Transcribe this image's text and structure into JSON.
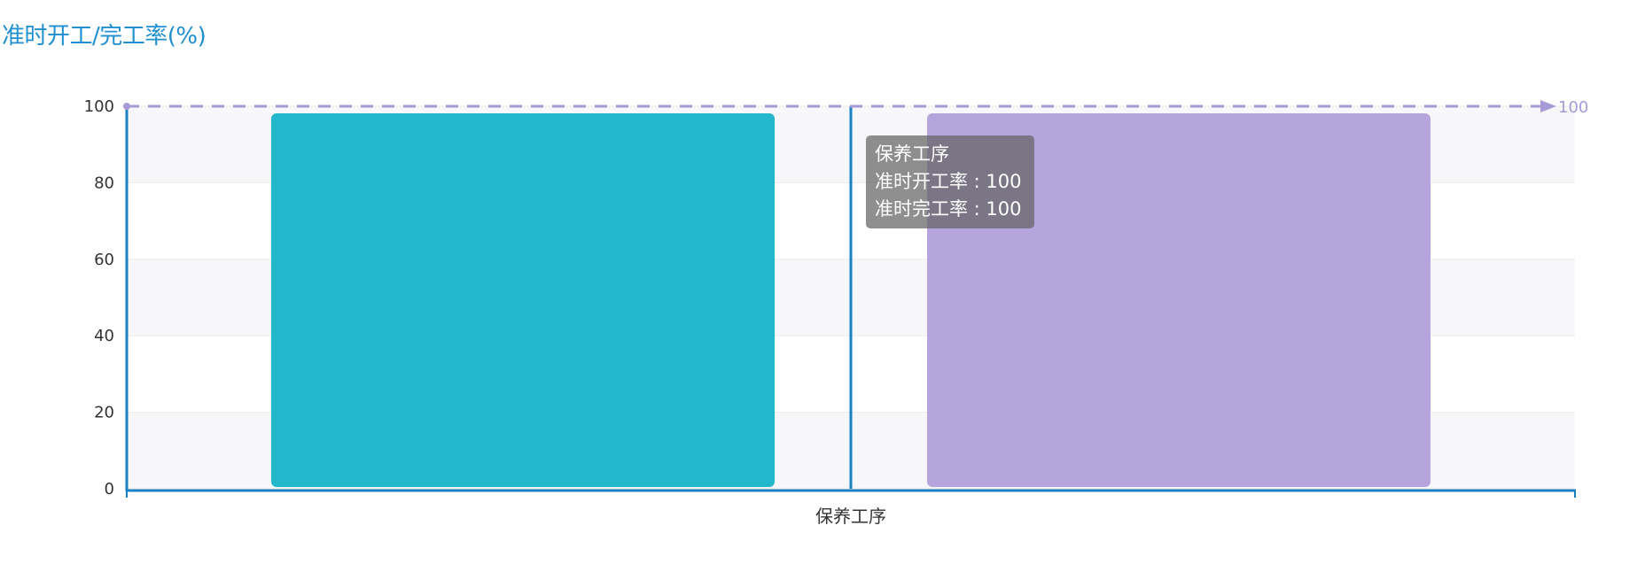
{
  "title": "准时开工/完工率(%)",
  "chart_data": {
    "type": "bar",
    "title": "准时开工/完工率(%)",
    "categories": [
      "保养工序"
    ],
    "series": [
      {
        "name": "准时开工率",
        "values": [
          100
        ],
        "color": "#23b7cc"
      },
      {
        "name": "准时完工率",
        "values": [
          100
        ],
        "color": "#b6a4dd"
      }
    ],
    "ylim": [
      0,
      100
    ],
    "yticks": [
      "0",
      "20",
      "40",
      "60",
      "80",
      "100"
    ],
    "grid": true,
    "markline": {
      "value": 100,
      "label": "100",
      "color": "#a89ad6"
    },
    "axis_color": "#1a82c4"
  },
  "tooltip": {
    "title": "保养工序",
    "lines": [
      "准时开工率 : 100",
      "准时完工率 : 100"
    ]
  }
}
